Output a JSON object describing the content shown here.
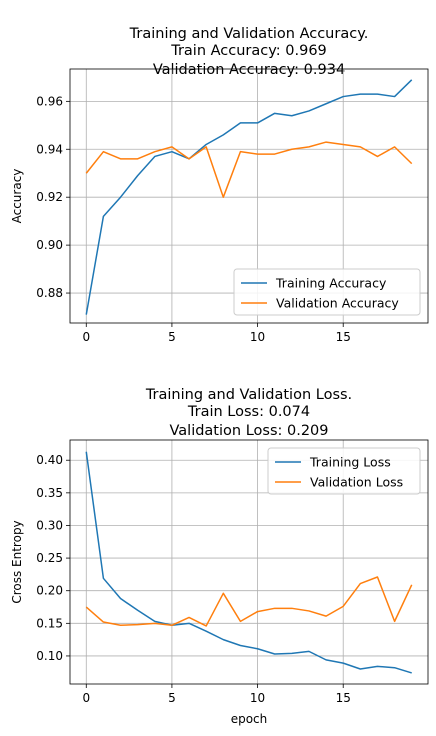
{
  "chart_data": [
    {
      "type": "line",
      "title_lines": [
        "Training and Validation Accuracy.",
        "Train Accuracy: 0.969",
        "Validation Accuracy: 0.934"
      ],
      "xlabel": "",
      "ylabel": "Accuracy",
      "xlim": [
        -0.95,
        19.95
      ],
      "ylim": [
        0.8675,
        0.9735
      ],
      "xticks": [
        0,
        5,
        10,
        15
      ],
      "yticks": [
        0.88,
        0.9,
        0.92,
        0.94,
        0.96
      ],
      "ytick_labels": [
        "0.88",
        "0.90",
        "0.92",
        "0.94",
        "0.96"
      ],
      "grid": true,
      "legend_placement": "lower-right",
      "x": [
        0,
        1,
        2,
        3,
        4,
        5,
        6,
        7,
        8,
        9,
        10,
        11,
        12,
        13,
        14,
        15,
        16,
        17,
        18,
        19
      ],
      "series": [
        {
          "name": "Training Accuracy",
          "color": "#1f77b4",
          "values": [
            0.871,
            0.912,
            0.92,
            0.929,
            0.937,
            0.939,
            0.936,
            0.942,
            0.946,
            0.951,
            0.951,
            0.955,
            0.954,
            0.956,
            0.959,
            0.962,
            0.963,
            0.963,
            0.962,
            0.969
          ]
        },
        {
          "name": "Validation Accuracy",
          "color": "#ff7f0e",
          "values": [
            0.93,
            0.939,
            0.936,
            0.936,
            0.939,
            0.941,
            0.936,
            0.941,
            0.92,
            0.939,
            0.938,
            0.938,
            0.94,
            0.941,
            0.943,
            0.942,
            0.941,
            0.937,
            0.941,
            0.934
          ]
        }
      ]
    },
    {
      "type": "line",
      "title_lines": [
        "Training and Validation Loss.",
        "Train Loss: 0.074",
        "Validation Loss: 0.209"
      ],
      "xlabel": "epoch",
      "ylabel": "Cross Entropy",
      "xlim": [
        -0.95,
        19.95
      ],
      "ylim": [
        0.057,
        0.431
      ],
      "xticks": [
        0,
        5,
        10,
        15
      ],
      "yticks": [
        0.1,
        0.15,
        0.2,
        0.25,
        0.3,
        0.35,
        0.4
      ],
      "ytick_labels": [
        "0.10",
        "0.15",
        "0.20",
        "0.25",
        "0.30",
        "0.35",
        "0.40"
      ],
      "grid": true,
      "legend_placement": "upper-right",
      "x": [
        0,
        1,
        2,
        3,
        4,
        5,
        6,
        7,
        8,
        9,
        10,
        11,
        12,
        13,
        14,
        15,
        16,
        17,
        18,
        19
      ],
      "series": [
        {
          "name": "Training Loss",
          "color": "#1f77b4",
          "values": [
            0.413,
            0.219,
            0.188,
            0.17,
            0.153,
            0.147,
            0.15,
            0.138,
            0.125,
            0.116,
            0.111,
            0.103,
            0.104,
            0.107,
            0.094,
            0.089,
            0.08,
            0.084,
            0.082,
            0.074
          ]
        },
        {
          "name": "Validation Loss",
          "color": "#ff7f0e",
          "values": [
            0.175,
            0.152,
            0.147,
            0.148,
            0.15,
            0.147,
            0.159,
            0.146,
            0.196,
            0.153,
            0.168,
            0.173,
            0.173,
            0.169,
            0.161,
            0.176,
            0.211,
            0.221,
            0.153,
            0.209
          ]
        }
      ]
    }
  ]
}
